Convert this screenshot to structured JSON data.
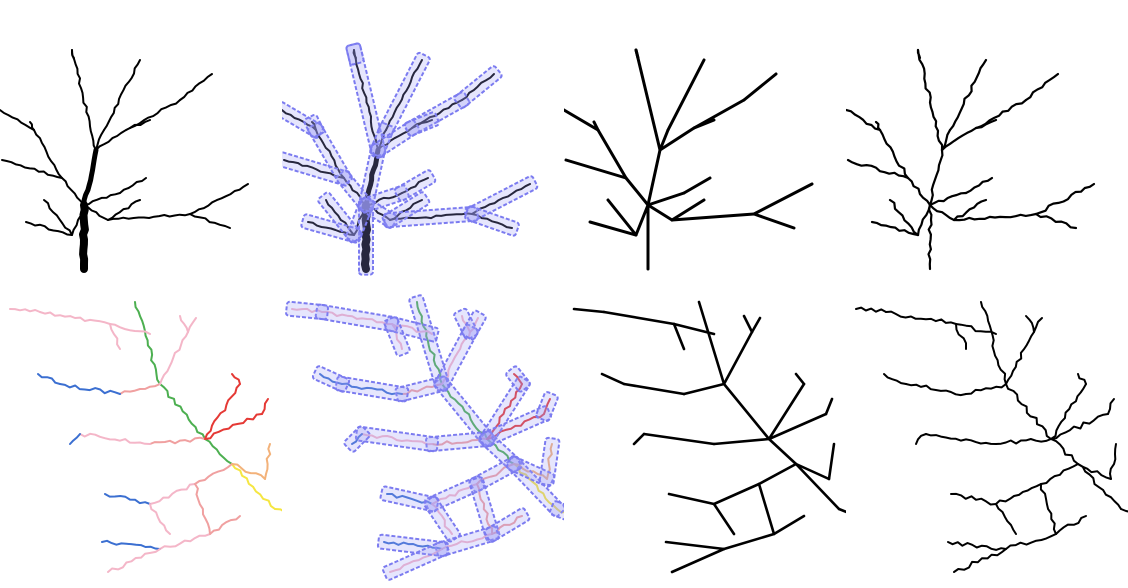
{
  "figure": {
    "rows": 2,
    "columns": 4,
    "row_contents": [
      "tree",
      "river-network"
    ],
    "column_contents": [
      "original-image",
      "detected-segments-with-bounding-boxes",
      "straight-line-skeleton",
      "traced-skeleton"
    ]
  },
  "colors": {
    "background": "#ffffff",
    "ink": "#000000",
    "box_outline": "#7b7bf0",
    "box_fill": "#9a9af7",
    "river_pink": "#f4b6c8",
    "river_salmon": "#f0a0a0",
    "river_red": "#e53935",
    "river_blue": "#3b6fd1",
    "river_green": "#4caf50",
    "river_yellow": "#f5e642",
    "river_orange": "#f3b27a"
  }
}
